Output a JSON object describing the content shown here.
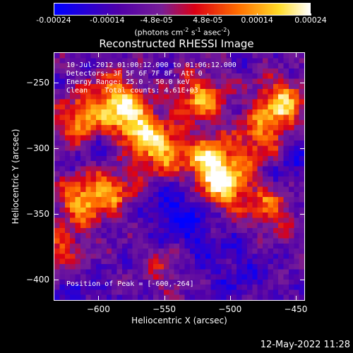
{
  "colorbar": {
    "ticks": [
      "-0.00024",
      "-0.00014",
      "-4.8e-05",
      "4.8e-05",
      "0.00014",
      "0.00024"
    ],
    "tick_values": [
      -0.00024,
      -0.00014,
      -4.8e-05,
      4.8e-05,
      0.00014,
      0.00024
    ],
    "range": [
      -0.00024,
      0.00024
    ],
    "unit_parts": {
      "a": "(photons cm",
      "b": "-2",
      "c": " s",
      "d": "-1",
      "e": " asec",
      "f": "-2",
      "g": ")"
    }
  },
  "info_lines": [
    "10-Jul-2012 01:00:12.000 to 01:06:12.000",
    "Detectors: 3F 5F 6F 7F 8F, Att 0",
    "Energy Range: 25.0 - 50.0 keV",
    "Clean    Total counts: 4.61E+03"
  ],
  "peak_text": "Position of Peak = [-600,-264]",
  "timestamp": "12-May-2022 11:28",
  "chart_data": {
    "type": "heatmap",
    "title": "Reconstructed RHESSI Image",
    "xlabel": "Heliocentric X (arcsec)",
    "ylabel": "Heliocentric Y (arcsec)",
    "xlim": [
      -634,
      -443
    ],
    "ylim": [
      -416,
      -227
    ],
    "xticks": [
      -600,
      -550,
      -500,
      -450
    ],
    "yticks": [
      -250,
      -300,
      -350,
      -400
    ],
    "colormap": "blue-purple-red-yellow-white",
    "value_range": [
      -0.00024,
      0.00024
    ],
    "peak": [
      -600,
      -264
    ],
    "bright_sources": [
      {
        "x": -615,
        "y": -280,
        "amp": 0.8
      },
      {
        "x": -588,
        "y": -262,
        "amp": 0.85
      },
      {
        "x": -573,
        "y": -283,
        "amp": 0.95
      },
      {
        "x": -553,
        "y": -302,
        "amp": 0.85
      },
      {
        "x": -523,
        "y": -262,
        "amp": 0.8
      },
      {
        "x": -516,
        "y": -310,
        "amp": 0.9
      },
      {
        "x": -503,
        "y": -328,
        "amp": 0.95
      },
      {
        "x": -462,
        "y": -267,
        "amp": 0.95
      },
      {
        "x": -478,
        "y": -295,
        "amp": 0.65
      },
      {
        "x": -614,
        "y": -340,
        "amp": 0.75
      },
      {
        "x": -590,
        "y": -330,
        "amp": 0.65
      },
      {
        "x": -628,
        "y": -380,
        "amp": 0.5
      },
      {
        "x": -469,
        "y": -345,
        "amp": 0.6
      },
      {
        "x": -548,
        "y": -390,
        "amp": 0.35
      }
    ],
    "dark_regions": [
      {
        "x": -598,
        "y": -300,
        "amp": 0.6
      },
      {
        "x": -540,
        "y": -345,
        "amp": 0.7
      },
      {
        "x": -530,
        "y": -370,
        "amp": 0.5
      },
      {
        "x": -455,
        "y": -315,
        "amp": 0.5
      },
      {
        "x": -495,
        "y": -395,
        "amp": 0.45
      },
      {
        "x": -620,
        "y": -410,
        "amp": 0.4
      }
    ]
  }
}
